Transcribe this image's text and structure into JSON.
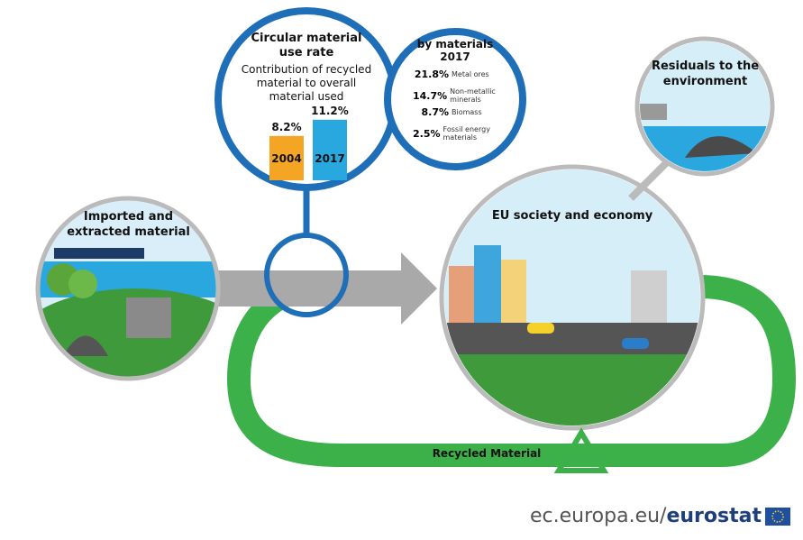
{
  "circular_rate": {
    "title": "Circular material use rate",
    "subtitle": "Contribution of recycled material to overall material used",
    "bars": [
      {
        "year": "2004",
        "value": 8.2,
        "label": "8.2%",
        "color": "#f5a524"
      },
      {
        "year": "2017",
        "value": 11.2,
        "label": "11.2%",
        "color": "#29a8e0"
      }
    ]
  },
  "by_materials": {
    "title": "by materials",
    "year": "2017",
    "items": [
      {
        "share": "21.8%",
        "name": "Metal ores"
      },
      {
        "share": "14.7%",
        "name": "Non-metallic minerals"
      },
      {
        "share": "8.7%",
        "name": "Biomass"
      },
      {
        "share": "2.5%",
        "name": "Fossil energy materials"
      }
    ]
  },
  "nodes": {
    "imported": "Imported and extracted material",
    "economy": "EU society and economy",
    "residuals": "Residuals to the environment",
    "recycled": "Recycled Material"
  },
  "footer": {
    "site": "ec.europa.eu/",
    "brand": "eurostat"
  }
}
